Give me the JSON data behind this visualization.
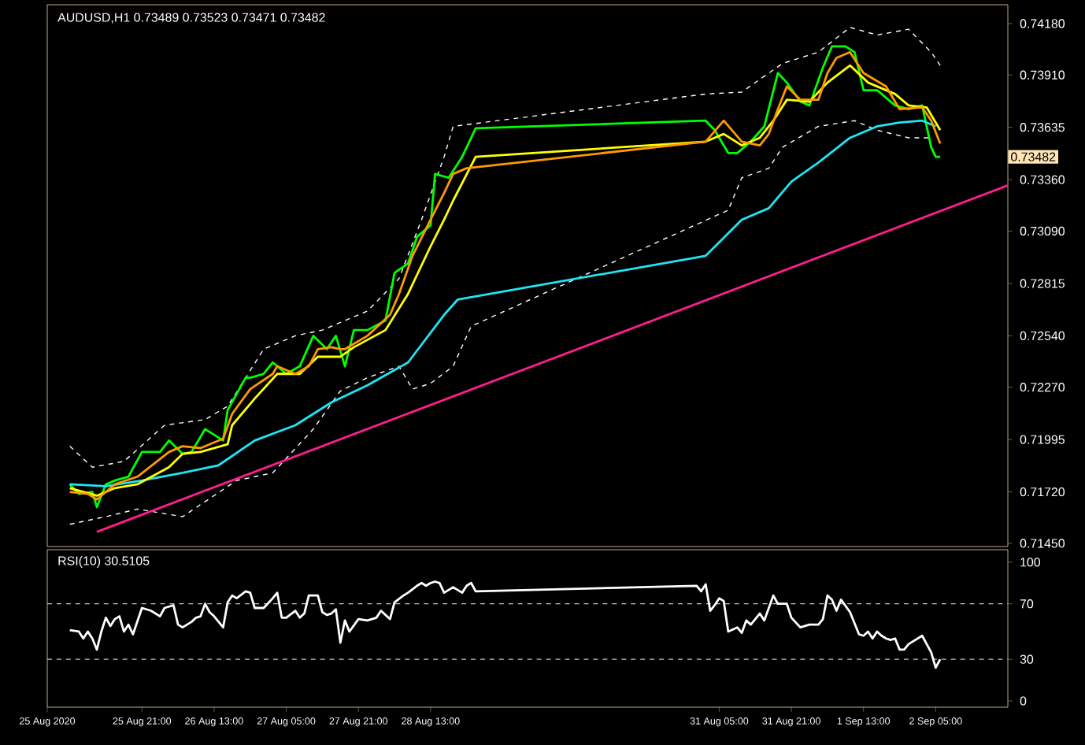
{
  "chart_data": [
    {
      "type": "line",
      "title": "AUDUSD,H1  0.73489 0.73523 0.73471 0.73482",
      "xlim": [
        "2020-08-25T00:00",
        "2020-09-02T21:00"
      ],
      "ylim": [
        0.71433,
        0.74279
      ],
      "yticks": [
        {
          "value": 0.7418,
          "label": "0.74180"
        },
        {
          "value": 0.7391,
          "label": "0.73910"
        },
        0.73635,
        {
          "value": 0.7336,
          "label": "0.73360"
        },
        {
          "value": 0.7309,
          "label": "0.73090"
        },
        0.72815,
        {
          "value": 0.7254,
          "label": "0.72540"
        },
        {
          "value": 0.7227,
          "label": "0.72270"
        },
        0.71995,
        {
          "value": 0.7172,
          "label": "0.71720"
        },
        {
          "value": 0.7145,
          "label": "0.71450"
        }
      ],
      "tick_labels": "y",
      "marker": "none",
      "annotations": [
        "0.73482"
      ],
      "series": [
        {
          "color": "#ffffff",
          "line_style": "dashed",
          "x": [
            "2020-08-25T05:00",
            "2020-08-25T10:00",
            "2020-08-25T17:00",
            "2020-08-26T02:00",
            "2020-08-26T11:00",
            "2020-08-26T16:00",
            "2020-08-27T00:00",
            "2020-08-27T07:00",
            "2020-08-27T13:00",
            "2020-08-27T23:00",
            "2020-08-28T06:00",
            "2020-08-28T11:00",
            "2020-08-28T16:00",
            "2020-08-28T18:00",
            "2020-08-31T02:00",
            "2020-08-31T10:00",
            "2020-08-31T19:00",
            "2020-09-01T03:00",
            "2020-09-01T10:00",
            "2020-09-01T16:00",
            "2020-09-01T23:00",
            "2020-09-02T04:00",
            "2020-09-02T06:00"
          ],
          "values": [
            0.7196,
            0.7185,
            0.7188,
            0.7207,
            0.721,
            0.7217,
            0.7247,
            0.7254,
            0.7257,
            0.7267,
            0.7284,
            0.7315,
            0.7348,
            0.7364,
            0.7381,
            0.7382,
            0.7397,
            0.7403,
            0.7416,
            0.7412,
            0.7415,
            0.7403,
            0.7396
          ]
        },
        {
          "color": "#ffffff",
          "line_style": "dashed",
          "x": [
            "2020-08-25T05:00",
            "2020-08-25T13:00",
            "2020-08-25T20:00",
            "2020-08-26T06:00",
            "2020-08-26T18:00",
            "2020-08-27T02:00",
            "2020-08-27T11:00",
            "2020-08-27T17:00",
            "2020-08-27T23:00",
            "2020-08-28T06:00",
            "2020-08-28T09:00",
            "2020-08-28T13:00",
            "2020-08-28T18:00",
            "2020-08-28T22:00",
            "2020-08-31T07:00",
            "2020-08-31T10:00",
            "2020-08-31T16:00",
            "2020-08-31T19:00",
            "2020-09-01T03:00",
            "2020-09-01T11:00",
            "2020-09-01T16:00",
            "2020-09-01T23:00",
            "2020-09-02T04:00"
          ],
          "values": [
            0.7155,
            0.7159,
            0.7163,
            0.7159,
            0.7178,
            0.7182,
            0.7205,
            0.7225,
            0.7232,
            0.7238,
            0.7226,
            0.7229,
            0.7238,
            0.7259,
            0.732,
            0.7337,
            0.7342,
            0.7353,
            0.7364,
            0.7367,
            0.7362,
            0.7358,
            0.7358
          ]
        },
        {
          "color": "#ff1e8c",
          "x": [
            "2020-08-25T11:00",
            "2020-09-02T21:00"
          ],
          "values": [
            0.7151,
            0.7333
          ]
        },
        {
          "color": "#00ff00",
          "x": [
            "2020-08-25T05:00",
            "2020-08-25T07:00",
            "2020-08-25T10:00",
            "2020-08-25T11:00",
            "2020-08-25T13:00",
            "2020-08-25T15:00",
            "2020-08-25T18:00",
            "2020-08-25T21:00",
            "2020-08-26T01:00",
            "2020-08-26T03:00",
            "2020-08-26T06:00",
            "2020-08-26T08:00",
            "2020-08-26T11:00",
            "2020-08-26T15:00",
            "2020-08-26T16:00",
            "2020-08-26T20:00",
            "2020-08-26T21:00",
            "2020-08-27T00:00",
            "2020-08-27T02:00",
            "2020-08-27T05:00",
            "2020-08-27T08:00",
            "2020-08-27T11:00",
            "2020-08-27T14:00",
            "2020-08-27T16:00",
            "2020-08-27T18:00",
            "2020-08-27T20:00",
            "2020-08-27T23:00",
            "2020-08-28T03:00",
            "2020-08-28T05:00",
            "2020-08-28T08:00",
            "2020-08-28T10:00",
            "2020-08-28T13:00",
            "2020-08-28T14:00",
            "2020-08-28T17:00",
            "2020-08-28T20:00",
            "2020-08-28T23:00",
            "2020-08-31T02:00",
            "2020-08-31T04:00",
            "2020-08-31T07:00",
            "2020-08-31T09:00",
            "2020-08-31T12:00",
            "2020-08-31T15:00",
            "2020-08-31T18:00",
            "2020-08-31T20:00",
            "2020-08-31T23:00",
            "2020-09-01T01:00",
            "2020-09-01T04:00",
            "2020-09-01T06:00",
            "2020-09-01T09:00",
            "2020-09-01T11:00",
            "2020-09-01T13:00",
            "2020-09-01T16:00",
            "2020-09-01T20:00",
            "2020-09-01T23:00",
            "2020-09-02T02:00",
            "2020-09-02T04:00",
            "2020-09-02T05:00",
            "2020-09-02T06:00"
          ],
          "values": [
            0.7176,
            0.7171,
            0.7172,
            0.7164,
            0.7176,
            0.7178,
            0.718,
            0.7193,
            0.7193,
            0.7199,
            0.7192,
            0.7193,
            0.7205,
            0.7199,
            0.7215,
            0.7232,
            0.7232,
            0.7234,
            0.724,
            0.7234,
            0.7238,
            0.7254,
            0.7247,
            0.7254,
            0.7238,
            0.7257,
            0.7257,
            0.7262,
            0.7287,
            0.7292,
            0.7306,
            0.7312,
            0.7339,
            0.7337,
            0.7348,
            0.7363,
            0.7367,
            0.7362,
            0.735,
            0.735,
            0.7356,
            0.7364,
            0.7392,
            0.7387,
            0.7377,
            0.7375,
            0.7395,
            0.7406,
            0.7406,
            0.7403,
            0.7383,
            0.7383,
            0.7375,
            0.7373,
            0.7375,
            0.7353,
            0.7348,
            0.7348
          ]
        },
        {
          "color": "#1ee6f5",
          "x": [
            "2020-08-25T05:00",
            "2020-08-25T13:00",
            "2020-08-25T21:00",
            "2020-08-26T06:00",
            "2020-08-26T14:00",
            "2020-08-26T22:00",
            "2020-08-27T07:00",
            "2020-08-27T15:00",
            "2020-08-27T23:00",
            "2020-08-28T08:00",
            "2020-08-28T16:00",
            "2020-08-28T19:00",
            "2020-08-31T02:00",
            "2020-08-31T10:00",
            "2020-08-31T16:00",
            "2020-08-31T21:00",
            "2020-09-01T03:00",
            "2020-09-01T10:00",
            "2020-09-01T16:00",
            "2020-09-01T21:00",
            "2020-09-02T02:00",
            "2020-09-02T05:00"
          ],
          "values": [
            0.7176,
            0.7175,
            0.7178,
            0.7182,
            0.7186,
            0.7199,
            0.7207,
            0.7219,
            0.7228,
            0.724,
            0.7265,
            0.7273,
            0.7296,
            0.7315,
            0.7321,
            0.7335,
            0.7345,
            0.7358,
            0.7364,
            0.7366,
            0.7367,
            0.7364
          ]
        },
        {
          "color": "#ffff00",
          "x": [
            "2020-08-25T05:00",
            "2020-08-25T11:00",
            "2020-08-25T15:00",
            "2020-08-25T20:00",
            "2020-08-26T03:00",
            "2020-08-26T06:00",
            "2020-08-26T10:00",
            "2020-08-26T16:00",
            "2020-08-26T17:00",
            "2020-08-26T22:00",
            "2020-08-27T03:00",
            "2020-08-27T08:00",
            "2020-08-27T12:00",
            "2020-08-27T17:00",
            "2020-08-27T20:00",
            "2020-08-28T03:00",
            "2020-08-28T08:00",
            "2020-08-28T13:00",
            "2020-08-28T16:00",
            "2020-08-28T18:00",
            "2020-08-28T23:00",
            "2020-08-31T02:00",
            "2020-08-31T06:00",
            "2020-08-31T10:00",
            "2020-08-31T14:00",
            "2020-08-31T17:00",
            "2020-08-31T20:00",
            "2020-09-01T01:00",
            "2020-09-01T05:00",
            "2020-09-01T10:00",
            "2020-09-01T14:00",
            "2020-09-01T20:00",
            "2020-09-01T23:00",
            "2020-09-02T03:00",
            "2020-09-02T06:00"
          ],
          "values": [
            0.7174,
            0.717,
            0.7174,
            0.7176,
            0.7185,
            0.7192,
            0.7193,
            0.7197,
            0.7207,
            0.7221,
            0.7234,
            0.7234,
            0.7243,
            0.7243,
            0.7248,
            0.7257,
            0.7276,
            0.7301,
            0.7315,
            0.7325,
            0.7348,
            0.7356,
            0.736,
            0.7354,
            0.7358,
            0.7367,
            0.7378,
            0.7377,
            0.7387,
            0.7396,
            0.7387,
            0.7381,
            0.7375,
            0.7374,
            0.7362
          ]
        },
        {
          "color": "#ff9900",
          "x": [
            "2020-08-25T05:00",
            "2020-08-25T09:00",
            "2020-08-25T11:00",
            "2020-08-25T15:00",
            "2020-08-25T20:00",
            "2020-08-26T03:00",
            "2020-08-26T06:00",
            "2020-08-26T10:00",
            "2020-08-26T15:00",
            "2020-08-26T17:00",
            "2020-08-26T21:00",
            "2020-08-27T02:00",
            "2020-08-27T03:00",
            "2020-08-27T07:00",
            "2020-08-27T10:00",
            "2020-08-27T12:00",
            "2020-08-27T15:00",
            "2020-08-27T17:00",
            "2020-08-27T18:00",
            "2020-08-27T23:00",
            "2020-08-28T04:00",
            "2020-08-28T06:00",
            "2020-08-28T09:00",
            "2020-08-28T13:00",
            "2020-08-28T16:00",
            "2020-08-28T18:00",
            "2020-08-28T21:00",
            "2020-08-31T02:00",
            "2020-08-31T06:00",
            "2020-08-31T10:00",
            "2020-08-31T14:00",
            "2020-08-31T16:00",
            "2020-08-31T18:00",
            "2020-08-31T20:00",
            "2020-08-31T23:00",
            "2020-09-01T03:00",
            "2020-09-01T05:00",
            "2020-09-01T07:00",
            "2020-09-01T10:00",
            "2020-09-01T13:00",
            "2020-09-01T18:00",
            "2020-09-01T21:00",
            "2020-09-02T02:00",
            "2020-09-02T04:00",
            "2020-09-02T06:00"
          ],
          "values": [
            0.7172,
            0.7171,
            0.7168,
            0.7176,
            0.718,
            0.7193,
            0.7196,
            0.7195,
            0.72,
            0.7213,
            0.7226,
            0.7234,
            0.7238,
            0.7234,
            0.7238,
            0.7247,
            0.7248,
            0.7247,
            0.7247,
            0.7254,
            0.7265,
            0.7276,
            0.7296,
            0.7315,
            0.7329,
            0.7339,
            0.7342,
            0.7356,
            0.7367,
            0.7356,
            0.7354,
            0.736,
            0.7373,
            0.7385,
            0.7378,
            0.7378,
            0.7392,
            0.74,
            0.7403,
            0.7392,
            0.7385,
            0.7373,
            0.7374,
            0.7367,
            0.7355
          ]
        }
      ]
    },
    {
      "type": "line",
      "title": "RSI(10) 30.5105",
      "xlim": [
        "2020-08-25T00:00",
        "2020-09-02T21:00"
      ],
      "ylim": [
        -4.5,
        109
      ],
      "yticks": [
        100,
        70,
        30,
        0
      ],
      "xticks": [
        {
          "value": "2020-08-25T00:00",
          "label": "25 Aug 2020"
        },
        {
          "value": "2020-08-25T21:00",
          "label": "25 Aug 21:00"
        },
        {
          "value": "2020-08-26T13:00",
          "label": "26 Aug 13:00"
        },
        {
          "value": "2020-08-27T05:00",
          "label": "27 Aug 05:00"
        },
        {
          "value": "2020-08-27T21:00",
          "label": "27 Aug 21:00"
        },
        {
          "value": "2020-08-28T13:00",
          "label": "28 Aug 13:00"
        },
        {
          "value": "2020-08-31T05:00",
          "label": "31 Aug 05:00"
        },
        {
          "value": "2020-08-31T21:00",
          "label": "31 Aug 21:00"
        },
        {
          "value": "2020-09-01T13:00",
          "label": "1 Sep 13:00"
        },
        {
          "value": "2020-09-02T05:00",
          "label": "2 Sep 05:00"
        }
      ],
      "marker": "none",
      "ref_lines": [
        {
          "axis": "y",
          "value": 70,
          "color": "#c0c0c0",
          "line_style": "dashed"
        },
        {
          "axis": "y",
          "value": 30,
          "color": "#c0c0c0",
          "line_style": "dashed"
        }
      ],
      "series": [
        {
          "color": "#ffffff",
          "x": [
            "2020-08-25T05:00",
            "2020-08-25T07:00",
            "2020-08-25T08:00",
            "2020-08-25T09:00",
            "2020-08-25T10:00",
            "2020-08-25T11:00",
            "2020-08-25T12:00",
            "2020-08-25T13:00",
            "2020-08-25T14:00",
            "2020-08-25T15:00",
            "2020-08-25T16:00",
            "2020-08-25T17:00",
            "2020-08-25T18:00",
            "2020-08-25T19:00",
            "2020-08-25T21:00",
            "2020-08-25T23:00",
            "2020-08-26T00:00",
            "2020-08-26T01:00",
            "2020-08-26T02:00",
            "2020-08-26T04:00",
            "2020-08-26T05:00",
            "2020-08-26T06:00",
            "2020-08-26T08:00",
            "2020-08-26T09:00",
            "2020-08-26T10:00",
            "2020-08-26T11:00",
            "2020-08-26T12:00",
            "2020-08-26T13:00",
            "2020-08-26T15:00",
            "2020-08-26T16:00",
            "2020-08-26T17:00",
            "2020-08-26T18:00",
            "2020-08-26T20:00",
            "2020-08-26T21:00",
            "2020-08-26T22:00",
            "2020-08-27T00:00",
            "2020-08-27T02:00",
            "2020-08-27T03:00",
            "2020-08-27T04:00",
            "2020-08-27T05:00",
            "2020-08-27T07:00",
            "2020-08-27T08:00",
            "2020-08-27T09:00",
            "2020-08-27T10:00",
            "2020-08-27T12:00",
            "2020-08-27T13:00",
            "2020-08-27T14:00",
            "2020-08-27T15:00",
            "2020-08-27T16:00",
            "2020-08-27T17:00",
            "2020-08-27T18:00",
            "2020-08-27T19:00",
            "2020-08-27T21:00",
            "2020-08-27T23:00",
            "2020-08-28T00:00",
            "2020-08-28T01:00",
            "2020-08-28T02:00",
            "2020-08-28T04:00",
            "2020-08-28T05:00",
            "2020-08-28T07:00",
            "2020-08-28T08:00",
            "2020-08-28T10:00",
            "2020-08-28T11:00",
            "2020-08-28T12:00",
            "2020-08-28T13:00",
            "2020-08-28T14:00",
            "2020-08-28T15:00",
            "2020-08-28T16:00",
            "2020-08-28T18:00",
            "2020-08-28T20:00",
            "2020-08-28T21:00",
            "2020-08-28T22:00",
            "2020-08-28T23:00",
            "2020-08-31T00:00",
            "2020-08-31T01:00",
            "2020-08-31T02:00",
            "2020-08-31T03:00",
            "2020-08-31T04:00",
            "2020-08-31T05:00",
            "2020-08-31T06:00",
            "2020-08-31T07:00",
            "2020-08-31T09:00",
            "2020-08-31T10:00",
            "2020-08-31T11:00",
            "2020-08-31T12:00",
            "2020-08-31T13:00",
            "2020-08-31T14:00",
            "2020-08-31T15:00",
            "2020-08-31T17:00",
            "2020-08-31T18:00",
            "2020-08-31T19:00",
            "2020-08-31T20:00",
            "2020-08-31T21:00",
            "2020-08-31T23:00",
            "2020-09-01T00:00",
            "2020-09-01T01:00",
            "2020-09-01T03:00",
            "2020-09-01T04:00",
            "2020-09-01T05:00",
            "2020-09-01T06:00",
            "2020-09-01T07:00",
            "2020-09-01T08:00",
            "2020-09-01T10:00",
            "2020-09-01T12:00",
            "2020-09-01T13:00",
            "2020-09-01T14:00",
            "2020-09-01T15:00",
            "2020-09-01T16:00",
            "2020-09-01T17:00",
            "2020-09-01T18:00",
            "2020-09-01T19:00",
            "2020-09-01T20:00",
            "2020-09-01T21:00",
            "2020-09-01T22:00",
            "2020-09-01T23:00",
            "2020-09-02T01:00",
            "2020-09-02T02:00",
            "2020-09-02T04:00",
            "2020-09-02T05:00",
            "2020-09-02T06:00"
          ],
          "values": [
            51,
            50,
            45,
            50,
            45,
            37,
            50,
            60,
            54,
            59,
            61,
            50,
            55,
            48,
            67,
            65,
            63,
            61,
            67,
            69,
            55,
            53,
            57,
            60,
            61,
            70,
            64,
            61,
            53,
            71,
            76,
            74,
            79,
            78,
            67,
            67,
            74,
            78,
            60,
            60,
            65,
            60,
            63,
            76,
            76,
            64,
            62,
            63,
            66,
            42,
            58,
            50,
            59,
            58,
            59,
            60,
            65,
            59,
            71,
            76,
            78,
            83,
            85,
            83,
            85,
            86,
            85,
            78,
            82,
            78,
            83,
            85,
            79,
            83,
            79,
            84,
            65,
            69,
            74,
            72,
            50,
            53,
            49,
            58,
            55,
            59,
            63,
            58,
            76,
            70,
            70,
            70,
            60,
            53,
            54,
            55,
            55,
            59,
            76,
            73,
            65,
            73,
            64,
            48,
            47,
            50,
            45,
            50,
            47,
            45,
            44,
            45,
            37,
            37,
            41,
            45,
            47,
            35,
            24,
            30
          ]
        }
      ]
    }
  ]
}
